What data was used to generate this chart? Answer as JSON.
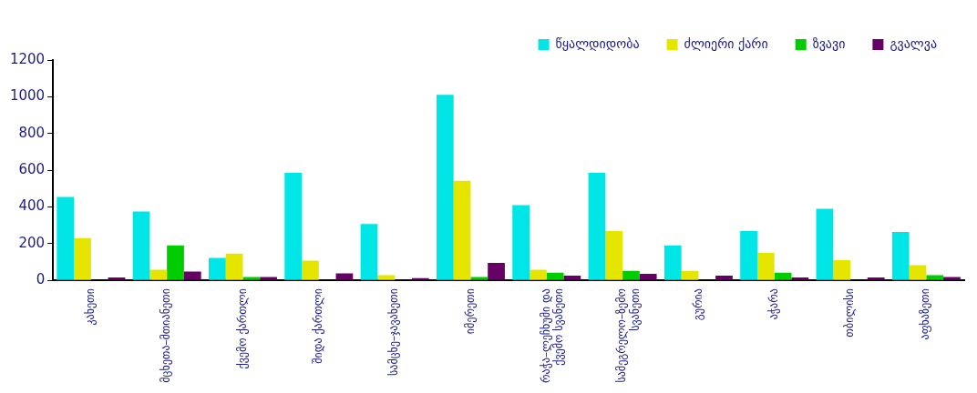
{
  "chart_data": {
    "type": "bar",
    "categories": [
      "კახეთი",
      "მცხეთა–მთიანეთი",
      "ქვემო ქართლი",
      "შიდა ქართლი",
      "სამცხე–ჯავახეთი",
      "იმერეთი",
      "რაჭა–ლეჩხუმი და ქვემო სვანეთი",
      "სამეგრელო–ზემო სვანეთი",
      "გურია",
      "აჭარა",
      "თბილისი",
      "აფხაზეთი"
    ],
    "series": [
      {
        "name": "წყალდიდობა",
        "color": "#00e5e5",
        "values": [
          454,
          375,
          122,
          585,
          307,
          1010,
          410,
          585,
          190,
          268,
          390,
          263
        ]
      },
      {
        "name": "ძლიერი ქარი",
        "color": "#e5e500",
        "values": [
          230,
          58,
          146,
          107,
          28,
          542,
          58,
          268,
          52,
          150,
          110,
          82
        ]
      },
      {
        "name": "ზვავი",
        "color": "#00cc00",
        "values": [
          0,
          190,
          18,
          0,
          0,
          18,
          42,
          52,
          0,
          42,
          0,
          28
        ]
      },
      {
        "name": "გვალვა",
        "color": "#660066",
        "values": [
          15,
          48,
          18,
          38,
          12,
          95,
          25,
          35,
          26,
          16,
          16,
          18
        ]
      }
    ],
    "ylim": [
      0,
      1200
    ],
    "yticks": [
      0,
      200,
      400,
      600,
      800,
      1000,
      1200
    ],
    "grid": false,
    "legend": "top right"
  }
}
